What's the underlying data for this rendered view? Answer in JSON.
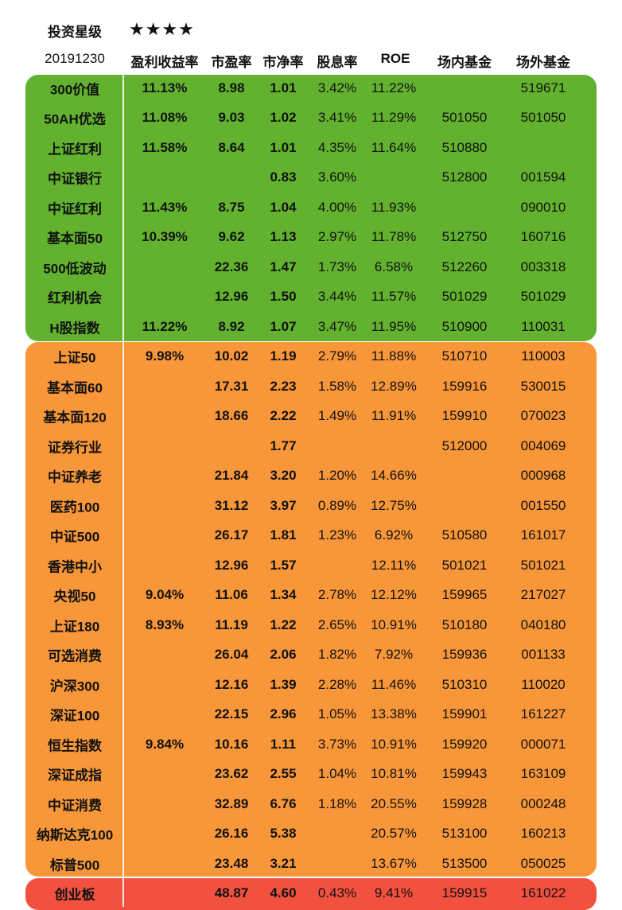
{
  "header": {
    "title": "投资星级",
    "stars": "★★★★",
    "date": "20191230",
    "columns": [
      "盈利收益率",
      "市盈率",
      "市净率",
      "股息率",
      "ROE",
      "场内基金",
      "场外基金"
    ]
  },
  "colors": {
    "green_band": "#62b22f",
    "orange_band": "#f8973a",
    "red_band": "#f2513f"
  },
  "groups": [
    {
      "name": "green",
      "rows": [
        {
          "name": "300价值",
          "ey": "11.13%",
          "pe": "8.98",
          "pb": "1.01",
          "dy": "3.42%",
          "roe": "11.22%",
          "onex": "",
          "offex": "519671"
        },
        {
          "name": "50AH优选",
          "ey": "11.08%",
          "pe": "9.03",
          "pb": "1.02",
          "dy": "3.41%",
          "roe": "11.29%",
          "onex": "501050",
          "offex": "501050"
        },
        {
          "name": "上证红利",
          "ey": "11.58%",
          "pe": "8.64",
          "pb": "1.01",
          "dy": "4.35%",
          "roe": "11.64%",
          "onex": "510880",
          "offex": ""
        },
        {
          "name": "中证银行",
          "ey": "",
          "pe": "",
          "pb": "0.83",
          "dy": "3.60%",
          "roe": "",
          "onex": "512800",
          "offex": "001594"
        },
        {
          "name": "中证红利",
          "ey": "11.43%",
          "pe": "8.75",
          "pb": "1.04",
          "dy": "4.00%",
          "roe": "11.93%",
          "onex": "",
          "offex": "090010"
        },
        {
          "name": "基本面50",
          "ey": "10.39%",
          "pe": "9.62",
          "pb": "1.13",
          "dy": "2.97%",
          "roe": "11.78%",
          "onex": "512750",
          "offex": "160716"
        },
        {
          "name": "500低波动",
          "ey": "",
          "pe": "22.36",
          "pb": "1.47",
          "dy": "1.73%",
          "roe": "6.58%",
          "onex": "512260",
          "offex": "003318"
        },
        {
          "name": "红利机会",
          "ey": "",
          "pe": "12.96",
          "pb": "1.50",
          "dy": "3.44%",
          "roe": "11.57%",
          "onex": "501029",
          "offex": "501029"
        },
        {
          "name": "H股指数",
          "ey": "11.22%",
          "pe": "8.92",
          "pb": "1.07",
          "dy": "3.47%",
          "roe": "11.95%",
          "onex": "510900",
          "offex": "110031"
        }
      ]
    },
    {
      "name": "orange",
      "rows": [
        {
          "name": "上证50",
          "ey": "9.98%",
          "pe": "10.02",
          "pb": "1.19",
          "dy": "2.79%",
          "roe": "11.88%",
          "onex": "510710",
          "offex": "110003"
        },
        {
          "name": "基本面60",
          "ey": "",
          "pe": "17.31",
          "pb": "2.23",
          "dy": "1.58%",
          "roe": "12.89%",
          "onex": "159916",
          "offex": "530015"
        },
        {
          "name": "基本面120",
          "ey": "",
          "pe": "18.66",
          "pb": "2.22",
          "dy": "1.49%",
          "roe": "11.91%",
          "onex": "159910",
          "offex": "070023"
        },
        {
          "name": "证券行业",
          "ey": "",
          "pe": "",
          "pb": "1.77",
          "dy": "",
          "roe": "",
          "onex": "512000",
          "offex": "004069"
        },
        {
          "name": "中证养老",
          "ey": "",
          "pe": "21.84",
          "pb": "3.20",
          "dy": "1.20%",
          "roe": "14.66%",
          "onex": "",
          "offex": "000968"
        },
        {
          "name": "医药100",
          "ey": "",
          "pe": "31.12",
          "pb": "3.97",
          "dy": "0.89%",
          "roe": "12.75%",
          "onex": "",
          "offex": "001550"
        },
        {
          "name": "中证500",
          "ey": "",
          "pe": "26.17",
          "pb": "1.81",
          "dy": "1.23%",
          "roe": "6.92%",
          "onex": "510580",
          "offex": "161017"
        },
        {
          "name": "香港中小",
          "ey": "",
          "pe": "12.96",
          "pb": "1.57",
          "dy": "",
          "roe": "12.11%",
          "onex": "501021",
          "offex": "501021"
        },
        {
          "name": "央视50",
          "ey": "9.04%",
          "pe": "11.06",
          "pb": "1.34",
          "dy": "2.78%",
          "roe": "12.12%",
          "onex": "159965",
          "offex": "217027"
        },
        {
          "name": "上证180",
          "ey": "8.93%",
          "pe": "11.19",
          "pb": "1.22",
          "dy": "2.65%",
          "roe": "10.91%",
          "onex": "510180",
          "offex": "040180"
        },
        {
          "name": "可选消费",
          "ey": "",
          "pe": "26.04",
          "pb": "2.06",
          "dy": "1.82%",
          "roe": "7.92%",
          "onex": "159936",
          "offex": "001133"
        },
        {
          "name": "沪深300",
          "ey": "",
          "pe": "12.16",
          "pb": "1.39",
          "dy": "2.28%",
          "roe": "11.46%",
          "onex": "510310",
          "offex": "110020"
        },
        {
          "name": "深证100",
          "ey": "",
          "pe": "22.15",
          "pb": "2.96",
          "dy": "1.05%",
          "roe": "13.38%",
          "onex": "159901",
          "offex": "161227"
        },
        {
          "name": "恒生指数",
          "ey": "9.84%",
          "pe": "10.16",
          "pb": "1.11",
          "dy": "3.73%",
          "roe": "10.91%",
          "onex": "159920",
          "offex": "000071"
        },
        {
          "name": "深证成指",
          "ey": "",
          "pe": "23.62",
          "pb": "2.55",
          "dy": "1.04%",
          "roe": "10.81%",
          "onex": "159943",
          "offex": "163109"
        },
        {
          "name": "中证消费",
          "ey": "",
          "pe": "32.89",
          "pb": "6.76",
          "dy": "1.18%",
          "roe": "20.55%",
          "onex": "159928",
          "offex": "000248"
        },
        {
          "name": "纳斯达克100",
          "ey": "",
          "pe": "26.16",
          "pb": "5.38",
          "dy": "",
          "roe": "20.57%",
          "onex": "513100",
          "offex": "160213"
        },
        {
          "name": "标普500",
          "ey": "",
          "pe": "23.48",
          "pb": "3.21",
          "dy": "",
          "roe": "13.67%",
          "onex": "513500",
          "offex": "050025"
        }
      ]
    },
    {
      "name": "red",
      "rows": [
        {
          "name": "创业板",
          "ey": "",
          "pe": "48.87",
          "pb": "4.60",
          "dy": "0.43%",
          "roe": "9.41%",
          "onex": "159915",
          "offex": "161022"
        }
      ]
    }
  ]
}
